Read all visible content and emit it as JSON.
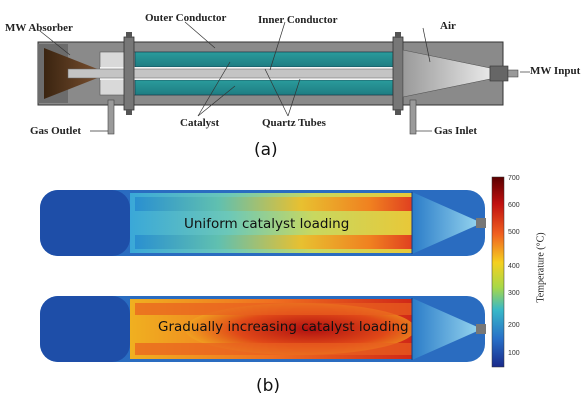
{
  "panel_a": {
    "caption": "(a)",
    "labels": {
      "mw_absorber": "MW Absorber",
      "outer_conductor": "Outer Conductor",
      "inner_conductor": "Inner Conductor",
      "air": "Air",
      "mw_input": "MW Input",
      "gas_outlet": "Gas Outlet",
      "catalyst": "Catalyst",
      "quartz_tubes": "Quartz Tubes",
      "gas_inlet": "Gas Inlet"
    }
  },
  "panel_b": {
    "caption": "(b)",
    "sim_top_label": "Uniform catalyst loading",
    "sim_bottom_label": "Gradually increasing catalyst loading",
    "colorbar": {
      "title": "Temperature (°C)",
      "ticks": [
        "700",
        "600",
        "500",
        "400",
        "300",
        "200",
        "100"
      ],
      "colors": [
        "#5a0000",
        "#c01010",
        "#f06020",
        "#f5d020",
        "#a8d848",
        "#38b8c8",
        "#2870c8",
        "#1a2a8a"
      ]
    }
  }
}
